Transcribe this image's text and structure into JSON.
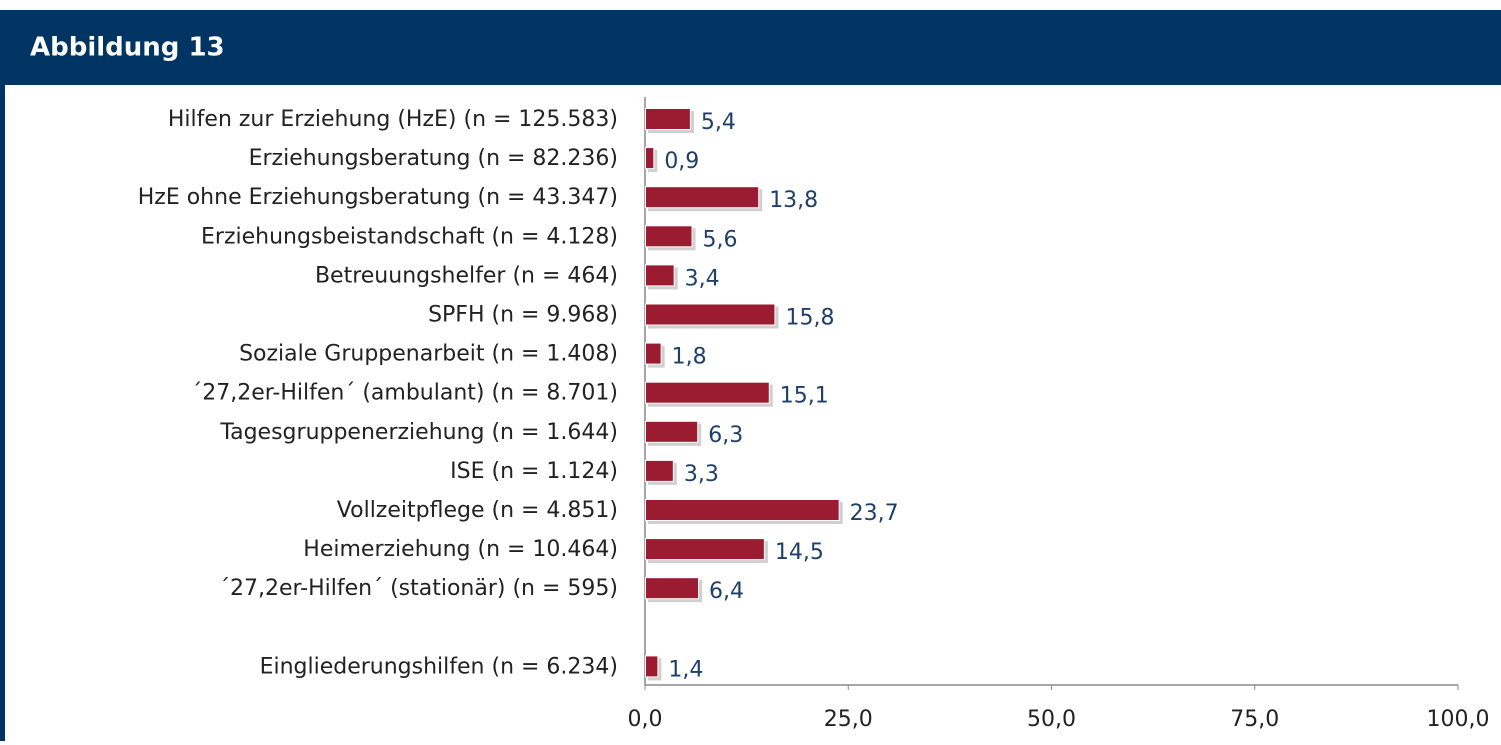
{
  "header": {
    "title": "Abbildung 13"
  },
  "chart_data": {
    "type": "hbar",
    "categories": [
      "Hilfen zur Erziehung (HzE) (n = 125.583)",
      "Erziehungsberatung (n = 82.236)",
      "HzE ohne Erziehungsberatung (n = 43.347)",
      "Erziehungsbeistandschaft (n = 4.128)",
      "Betreuungshelfer (n = 464)",
      "SPFH (n = 9.968)",
      "Soziale Gruppenarbeit (n = 1.408)",
      "´27,2er-Hilfen´ (ambulant) (n = 8.701)",
      "Tagesgruppenerziehung (n = 1.644)",
      "ISE (n = 1.124)",
      "Vollzeitpflege (n = 4.851)",
      "Heimerziehung (n = 10.464)",
      "´27,2er-Hilfen´ (stationär) (n = 595)",
      null,
      "Eingliederungshilfen (n = 6.234)"
    ],
    "values": [
      5.4,
      0.9,
      13.8,
      5.6,
      3.4,
      15.8,
      1.8,
      15.1,
      6.3,
      3.3,
      23.7,
      14.5,
      6.4,
      null,
      1.4
    ],
    "value_labels": [
      "5,4",
      "0,9",
      "13,8",
      "5,6",
      "3,4",
      "15,8",
      "1,8",
      "15,1",
      "6,3",
      "3,3",
      "23,7",
      "14,5",
      "6,4",
      null,
      "1,4"
    ],
    "color": "#9b1b30",
    "xlim": [
      0,
      100
    ],
    "xticks": [
      {
        "value": 0,
        "label": "0,0"
      },
      {
        "value": 25,
        "label": "25,0"
      },
      {
        "value": 50,
        "label": "50,0"
      },
      {
        "value": 75,
        "label": "75,0"
      },
      {
        "value": 100,
        "label": "100,0"
      }
    ]
  }
}
